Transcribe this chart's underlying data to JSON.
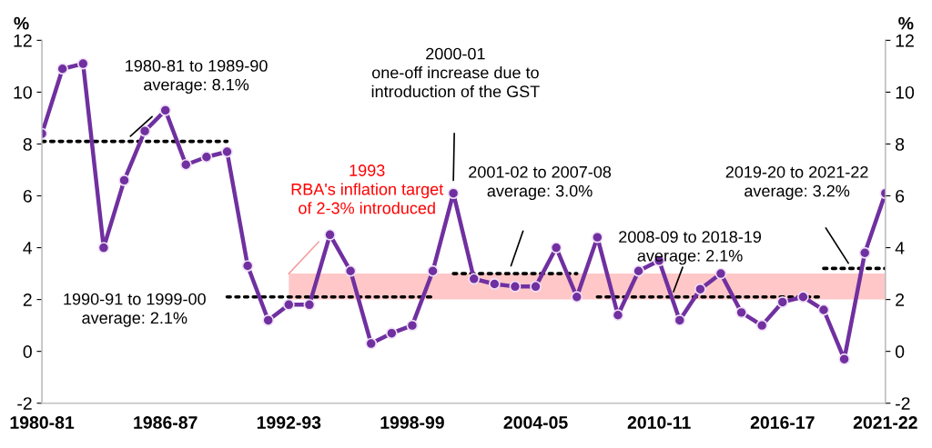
{
  "chart_data": {
    "type": "line",
    "categories": [
      "1980-81",
      null,
      null,
      null,
      null,
      null,
      "1986-87",
      null,
      null,
      null,
      null,
      null,
      "1992-93",
      null,
      null,
      null,
      null,
      null,
      "1998-99",
      null,
      null,
      null,
      null,
      null,
      "2004-05",
      null,
      null,
      null,
      null,
      null,
      "2010-11",
      null,
      null,
      null,
      null,
      null,
      "2016-17",
      null,
      null,
      null,
      null,
      "2021-22"
    ],
    "ylabel": "%",
    "y2label": "%",
    "ylim": [
      -2,
      12
    ],
    "yticks": [
      -2,
      0,
      2,
      4,
      6,
      8,
      10,
      12
    ],
    "y2lim": [
      -2,
      12
    ],
    "y2ticks": [
      -2,
      0,
      2,
      4,
      6,
      8,
      10,
      12
    ],
    "grid": false,
    "legend": false,
    "bands": [
      {
        "axis": "y",
        "from": 2,
        "to": 3,
        "color": "#ffc7c7"
      }
    ],
    "series": [
      {
        "type": "line",
        "color": "#000000",
        "line_style": "dotted",
        "marker": "none",
        "values": [
          8.1,
          8.1,
          8.1,
          8.1,
          8.1,
          8.1,
          8.1,
          8.1,
          8.1,
          8.1,
          null,
          null,
          null,
          null,
          null,
          null,
          null,
          null,
          null,
          null,
          null,
          null,
          null,
          null,
          null,
          null,
          null,
          null,
          null,
          null,
          null,
          null,
          null,
          null,
          null,
          null,
          null,
          null,
          null,
          null,
          null,
          null
        ]
      },
      {
        "type": "line",
        "color": "#000000",
        "line_style": "dotted",
        "marker": "none",
        "values": [
          null,
          null,
          null,
          null,
          null,
          null,
          null,
          null,
          null,
          2.1,
          2.1,
          2.1,
          2.1,
          2.1,
          2.1,
          2.1,
          2.1,
          2.1,
          2.1,
          2.1,
          null,
          null,
          null,
          null,
          null,
          null,
          null,
          null,
          null,
          null,
          null,
          null,
          null,
          null,
          null,
          null,
          null,
          null,
          null,
          null,
          null,
          null
        ]
      },
      {
        "type": "line",
        "color": "#000000",
        "line_style": "dotted",
        "marker": "none",
        "values": [
          null,
          null,
          null,
          null,
          null,
          null,
          null,
          null,
          null,
          null,
          null,
          null,
          null,
          null,
          null,
          null,
          null,
          null,
          null,
          null,
          3.0,
          3.0,
          3.0,
          3.0,
          3.0,
          3.0,
          3.0,
          null,
          null,
          null,
          null,
          null,
          null,
          null,
          null,
          null,
          null,
          null,
          null,
          null,
          null,
          null
        ]
      },
      {
        "type": "line",
        "color": "#000000",
        "line_style": "dotted",
        "marker": "none",
        "values": [
          null,
          null,
          null,
          null,
          null,
          null,
          null,
          null,
          null,
          null,
          null,
          null,
          null,
          null,
          null,
          null,
          null,
          null,
          null,
          null,
          null,
          null,
          null,
          null,
          null,
          null,
          null,
          2.1,
          2.1,
          2.1,
          2.1,
          2.1,
          2.1,
          2.1,
          2.1,
          2.1,
          2.1,
          2.1,
          2.1,
          null,
          null,
          null
        ]
      },
      {
        "type": "line",
        "color": "#000000",
        "line_style": "dotted",
        "marker": "none",
        "values": [
          null,
          null,
          null,
          null,
          null,
          null,
          null,
          null,
          null,
          null,
          null,
          null,
          null,
          null,
          null,
          null,
          null,
          null,
          null,
          null,
          null,
          null,
          null,
          null,
          null,
          null,
          null,
          null,
          null,
          null,
          null,
          null,
          null,
          null,
          null,
          null,
          null,
          null,
          3.2,
          3.2,
          3.2,
          3.2
        ]
      },
      {
        "color": "#7030a0",
        "line_style": "solid",
        "marker": "circle",
        "values": [
          8.4,
          10.9,
          11.1,
          4.0,
          6.6,
          8.5,
          9.3,
          7.2,
          7.5,
          7.7,
          3.3,
          1.2,
          1.8,
          1.8,
          4.5,
          3.1,
          0.3,
          0.7,
          1.0,
          3.1,
          6.1,
          2.8,
          2.6,
          2.5,
          2.5,
          4.0,
          2.1,
          4.4,
          1.4,
          3.1,
          3.5,
          1.2,
          2.4,
          3.0,
          1.5,
          1.0,
          1.9,
          2.1,
          1.6,
          -0.3,
          3.8,
          6.1
        ]
      }
    ],
    "annotations": [
      "1980-81 to 1989-90\naverage: 8.1%",
      "1990-91 to 1999-00\naverage: 2.1%",
      "2000-01\none-off increase due to\nintroduction of the GST",
      "1993\nRBA's inflation target\nof 2-3% introduced",
      "2001-02 to 2007-08\naverage: 3.0%",
      "2008-09 to 2018-19\naverage: 2.1%",
      "2019-20 to 2021-22\naverage: 3.2%"
    ]
  }
}
